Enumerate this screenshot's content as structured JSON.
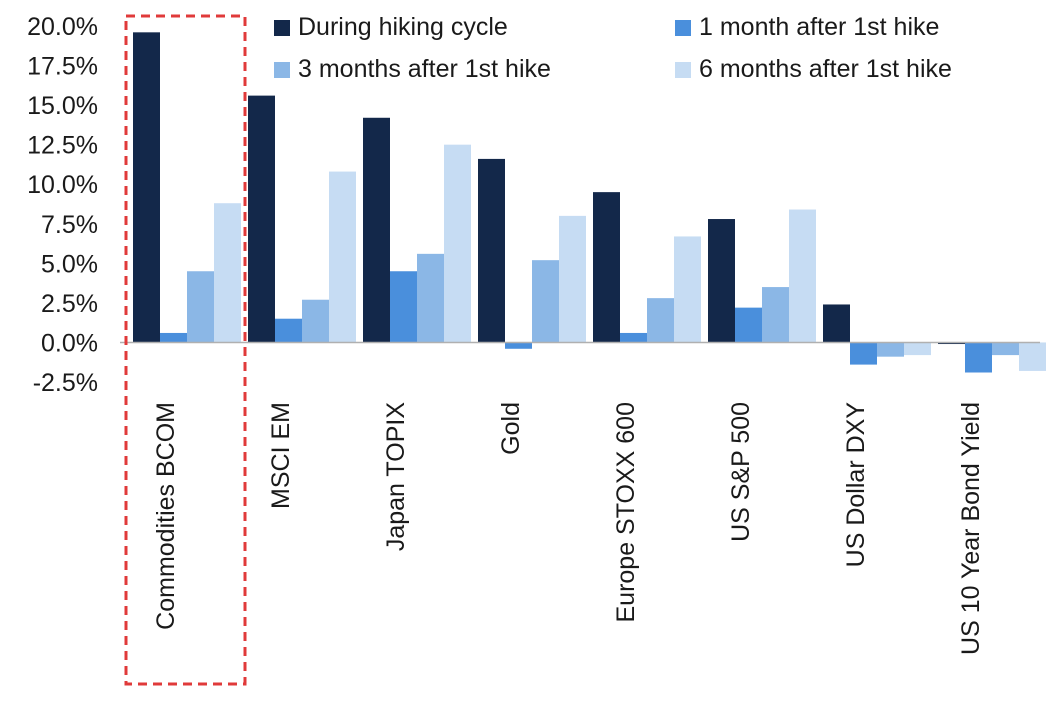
{
  "chart_data": {
    "type": "bar",
    "categories": [
      "Commodities BCOM",
      "MSCI EM",
      "Japan TOPIX",
      "Gold",
      "Europe STOXX 600",
      "US S&P 500",
      "US Dollar DXY",
      "US 10 Year Bond Yield"
    ],
    "series": [
      {
        "name": "During hiking cycle",
        "color": "#13284a",
        "values": [
          19.6,
          15.6,
          14.2,
          11.6,
          9.5,
          7.8,
          2.4,
          -0.1
        ]
      },
      {
        "name": "1 month after 1st hike",
        "color": "#4a8fdc",
        "values": [
          0.6,
          1.5,
          4.5,
          -0.4,
          0.6,
          2.2,
          -1.4,
          -1.9
        ]
      },
      {
        "name": "3 months after 1st hike",
        "color": "#8bb7e6",
        "values": [
          4.5,
          2.7,
          5.6,
          5.2,
          2.8,
          3.5,
          -0.9,
          -0.8
        ]
      },
      {
        "name": "6 months after 1st hike",
        "color": "#c6dcf3",
        "values": [
          8.8,
          10.8,
          12.5,
          8.0,
          6.7,
          8.4,
          -0.8,
          -1.8
        ]
      }
    ],
    "y_ticks": [
      "20.0%",
      "17.5%",
      "15.0%",
      "12.5%",
      "10.0%",
      "7.5%",
      "5.0%",
      "2.5%",
      "0.0%",
      "-2.5%"
    ],
    "ylim": [
      -2.5,
      20.0
    ],
    "legend_position": "top",
    "highlight": {
      "category": "Commodities BCOM",
      "style": "red-dashed-box",
      "color": "#e03a3a"
    }
  }
}
